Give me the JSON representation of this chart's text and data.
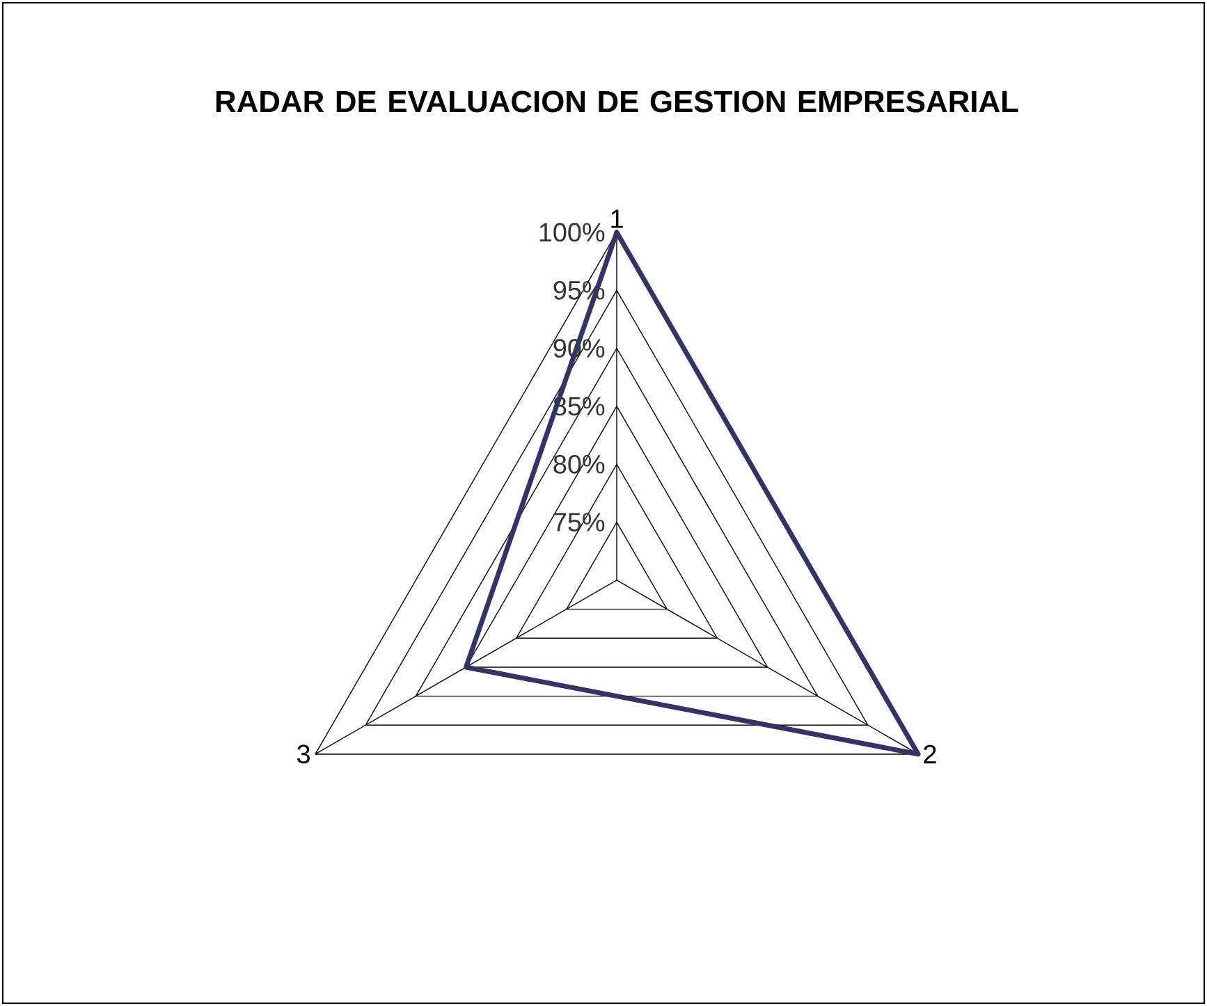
{
  "chart_data": {
    "type": "radar",
    "title": "RADAR DE EVALUACION DE GESTION EMPRESARIAL",
    "categories": [
      "1",
      "2",
      "3"
    ],
    "series": [
      {
        "color": "#333366",
        "values": [
          100,
          100,
          85
        ]
      }
    ],
    "ylim": [
      70,
      100
    ],
    "yticks": [
      {
        "value": 75,
        "label": "75%"
      },
      {
        "value": 80,
        "label": "80%"
      },
      {
        "value": 85,
        "label": "85%"
      },
      {
        "value": 90,
        "label": "90%"
      },
      {
        "value": 95,
        "label": "95%"
      },
      {
        "value": 100,
        "label": "100%"
      }
    ],
    "grid": true
  }
}
